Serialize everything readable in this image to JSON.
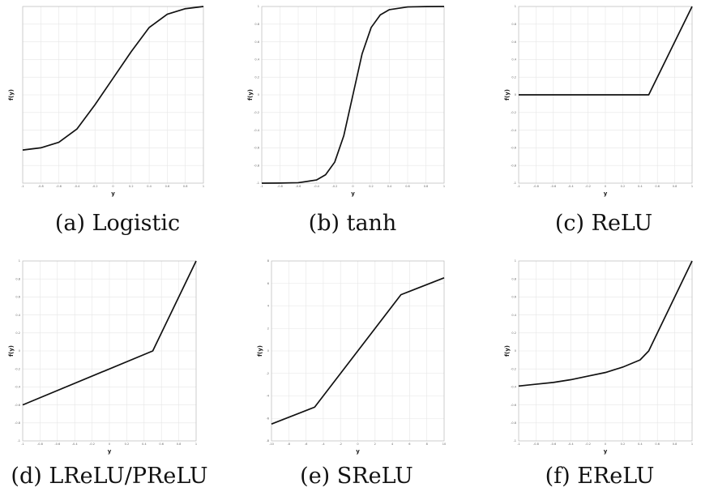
{
  "chart_data": [
    {
      "type": "line",
      "caption": "(a) Logistic",
      "xlabel": "y",
      "ylabel": "f(y)",
      "xlim": [
        -1,
        1
      ],
      "ylim": [
        0.47,
        0.63
      ],
      "grid": true,
      "xticks": [
        -1,
        -0.8,
        -0.6,
        -0.4,
        -0.2,
        0,
        0.2,
        0.4,
        0.6,
        0.8,
        1
      ],
      "x": [
        -1,
        -0.8,
        -0.6,
        -0.4,
        -0.2,
        0,
        0.2,
        0.4,
        0.6,
        0.8,
        1
      ],
      "y": [
        0.5,
        0.502,
        0.507,
        0.519,
        0.541,
        0.565,
        0.589,
        0.611,
        0.623,
        0.628,
        0.63
      ]
    },
    {
      "type": "line",
      "caption": "(b) tanh",
      "xlabel": "y",
      "ylabel": "f(y)",
      "xlim": [
        -1,
        1
      ],
      "ylim": [
        -1,
        1
      ],
      "grid": true,
      "xticks": [
        -1,
        -0.8,
        -0.6,
        -0.4,
        -0.2,
        0,
        0.2,
        0.4,
        0.6,
        0.8,
        1
      ],
      "yticks": [
        -1,
        -0.8,
        -0.6,
        -0.4,
        -0.2,
        0,
        0.2,
        0.4,
        0.6,
        0.8,
        1
      ],
      "x": [
        -1,
        -0.8,
        -0.6,
        -0.4,
        -0.3,
        -0.2,
        -0.1,
        0,
        0.1,
        0.2,
        0.3,
        0.4,
        0.6,
        0.8,
        1
      ],
      "y": [
        -1,
        -0.999,
        -0.995,
        -0.964,
        -0.905,
        -0.762,
        -0.462,
        0,
        0.462,
        0.762,
        0.905,
        0.964,
        0.995,
        0.999,
        1
      ]
    },
    {
      "type": "line",
      "caption": "(c) ReLU",
      "xlabel": "y",
      "ylabel": "f(y)",
      "xlim": [
        -1,
        1
      ],
      "ylim": [
        -1,
        1
      ],
      "grid": true,
      "xticks": [
        -1,
        -0.8,
        -0.6,
        -0.4,
        -0.2,
        0,
        0.2,
        0.4,
        0.6,
        0.8,
        1
      ],
      "yticks": [
        -1,
        -0.8,
        -0.6,
        -0.4,
        -0.2,
        0,
        0.2,
        0.4,
        0.6,
        0.8,
        1
      ],
      "x": [
        -1,
        0.5,
        1
      ],
      "y": [
        0,
        0,
        1
      ]
    },
    {
      "type": "line",
      "caption": "(d) LReLU/PReLU",
      "xlabel": "y",
      "ylabel": "f(y)",
      "xlim": [
        -1,
        1
      ],
      "ylim": [
        -1,
        1
      ],
      "grid": true,
      "xticks": [
        -1,
        -0.8,
        -0.6,
        -0.4,
        -0.2,
        0,
        0.2,
        0.4,
        0.6,
        0.8,
        1
      ],
      "yticks": [
        -1,
        -0.8,
        -0.6,
        -0.4,
        -0.2,
        0,
        0.2,
        0.4,
        0.6,
        0.8,
        1
      ],
      "x": [
        -1,
        0.5,
        1
      ],
      "y": [
        -0.6,
        0,
        1
      ]
    },
    {
      "type": "line",
      "caption": "(e) SReLU",
      "xlabel": "y",
      "ylabel": "f(y)",
      "xlim": [
        -10,
        10
      ],
      "ylim": [
        -8,
        8
      ],
      "grid": true,
      "xticks": [
        -10,
        -8,
        -6,
        -4,
        -2,
        0,
        2,
        4,
        6,
        8,
        10
      ],
      "yticks": [
        -8,
        -6,
        -4,
        -2,
        0,
        2,
        4,
        6,
        8
      ],
      "x": [
        -10,
        -5,
        5,
        10
      ],
      "y": [
        -6.5,
        -5,
        5,
        6.5
      ]
    },
    {
      "type": "line",
      "caption": "(f) EReLU",
      "xlabel": "y",
      "ylabel": "f(y)",
      "xlim": [
        -1,
        1
      ],
      "ylim": [
        -1,
        1
      ],
      "grid": true,
      "xticks": [
        -1,
        -0.8,
        -0.6,
        -0.4,
        -0.2,
        0,
        0.2,
        0.4,
        0.6,
        0.8,
        1
      ],
      "yticks": [
        -1,
        -0.8,
        -0.6,
        -0.4,
        -0.2,
        0,
        0.2,
        0.4,
        0.6,
        0.8,
        1
      ],
      "x": [
        -1,
        -0.8,
        -0.6,
        -0.4,
        -0.2,
        0,
        0.2,
        0.4,
        0.5,
        0.6,
        0.8,
        1
      ],
      "y": [
        -0.39,
        -0.37,
        -0.35,
        -0.32,
        -0.28,
        -0.24,
        -0.18,
        -0.1,
        0,
        0.2,
        0.6,
        1
      ]
    }
  ]
}
